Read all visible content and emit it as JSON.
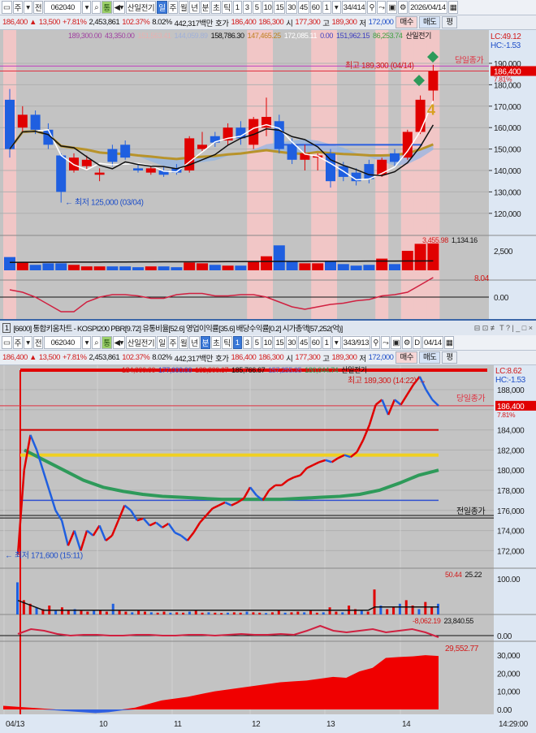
{
  "colors": {
    "up": "#e00000",
    "down": "#1f5fe0",
    "plot_bg": "#c3c3c3",
    "axis_bg": "#dde7f3",
    "highlight": "#f1c6c6"
  },
  "top": {
    "toolbar": [
      "주",
      "전",
      "062040",
      "통",
      "산일전기",
      "일",
      "주",
      "월",
      "년",
      "분",
      "초",
      "틱",
      "1",
      "3",
      "5",
      "10",
      "15",
      "30",
      "45",
      "60",
      "1",
      "34/414",
      "2026/04/14"
    ],
    "toolbar_selected": [
      5
    ],
    "quote": {
      "price": "186,400 ▲",
      "change": "13,500",
      "rate": "+7.81%",
      "volume": "2,453,861",
      "vol_ratio": "102.37%",
      "turnover": "8.02%",
      "amount": "442,317백만",
      "hoga_label": "호가",
      "ask": "186,400",
      "bid": "186,300",
      "open_label": "시",
      "open": "177,300",
      "high_label": "고",
      "high": "189,300",
      "low_label": "저",
      "low": "172,000",
      "buy": "매수",
      "sell": "매도",
      "avg": "평"
    },
    "legend": [
      "189,300.00",
      "43,350.00",
      "151,563.41",
      "144,059.89",
      "158,786.30",
      "147,465.25",
      "172,085.11",
      "0.00",
      "151,962.15",
      "86,253.74",
      "산일전기"
    ],
    "lc": "LC:49.12",
    "hc": "HC:-1.53",
    "high_note": "최고 189,300 (04/14)",
    "low_note": "최저 125,000 (03/04)",
    "prev_close_label": "당일종가",
    "last_price": "186,400",
    "last_rate": "7.81%",
    "signal_number": "4",
    "price_ticks": [
      "190,000",
      "180,000",
      "170,000",
      "160,000",
      "150,000",
      "140,000",
      "130,000",
      "120,000"
    ],
    "volume_labels": [
      "3,455.98",
      "1,134.16"
    ],
    "volume_tick": "2,500",
    "osc_label": "8.04",
    "osc_tick": "0.00"
  },
  "title_bar": {
    "num": "1",
    "text": "[6600] 통합키움차트 - KOSPI200 PBR[9.72] 유통비율[52.6] 영업이익률[35.6] 배당수익률[0.2] 시가총액[57,252(억)]",
    "controls": "⊟ ⊡ ≢ T ? | _ □ ×"
  },
  "bottom": {
    "toolbar": [
      "주",
      "전",
      "062040",
      "통",
      "산일전기",
      "일",
      "주",
      "월",
      "년",
      "분",
      "초",
      "틱",
      "1",
      "3",
      "5",
      "10",
      "15",
      "30",
      "45",
      "60",
      "1",
      "343/913",
      "D",
      "04/14"
    ],
    "toolbar_selected": [
      9,
      12
    ],
    "legend": [
      "184,000.00",
      "177,000.00",
      "183,300.67",
      "185,766.67",
      "157,255.35",
      "180,044.74",
      "산일전기"
    ],
    "lc": "LC:8.62",
    "hc": "HC:-1.53",
    "high_note": "최고 189,300 (14:22)",
    "low_note": "최저 171,600 (15:11)",
    "prev_close_label": "당일종가",
    "prev_day_label": "전일종가",
    "last_price": "186,400",
    "last_rate": "7.81%",
    "price_ticks": [
      "188,000",
      "186,000",
      "184,000",
      "182,000",
      "180,000",
      "178,000",
      "176,000",
      "174,000",
      "172,000"
    ],
    "volume_labels": [
      "50.44",
      "25.22"
    ],
    "volume_tick": "100.00",
    "osc_labels": [
      "-8,062.19",
      "23,840.55"
    ],
    "osc_tick": "0.00",
    "area_label": "29,552.77",
    "area_ticks": [
      "30,000",
      "20,000",
      "10,000",
      "0.00"
    ],
    "x_labels": [
      "04/13",
      "10",
      "11",
      "12",
      "13",
      "14"
    ],
    "time": "14:29:00"
  },
  "chart_data": [
    {
      "type": "candlestick",
      "period": "daily",
      "ohlc": [
        [
          173,
          178,
          146,
          150
        ],
        [
          160,
          170,
          158,
          166
        ],
        [
          166,
          168,
          157,
          159
        ],
        [
          159,
          162,
          150,
          152
        ],
        [
          147,
          148,
          125,
          130
        ],
        [
          140,
          148,
          139,
          146
        ],
        [
          142,
          147,
          140,
          145
        ],
        [
          138,
          141,
          135,
          139
        ],
        [
          150,
          152,
          142,
          144
        ],
        [
          152,
          154,
          145,
          146
        ],
        [
          141,
          143,
          139,
          140
        ],
        [
          139,
          142,
          138,
          141
        ],
        [
          140,
          142,
          137,
          138
        ],
        [
          141,
          143,
          138,
          139
        ],
        [
          140,
          156,
          139,
          155
        ],
        [
          150,
          158,
          149,
          152
        ],
        [
          156,
          158,
          151,
          153
        ],
        [
          154,
          162,
          152,
          160
        ],
        [
          160,
          163,
          152,
          155
        ],
        [
          152,
          165,
          150,
          164
        ],
        [
          160,
          174,
          156,
          165
        ],
        [
          163,
          166,
          148,
          150
        ],
        [
          152,
          155,
          143,
          145
        ],
        [
          145,
          152,
          140,
          148
        ],
        [
          146,
          148,
          140,
          147
        ],
        [
          148,
          150,
          132,
          135
        ],
        [
          142,
          144,
          135,
          137
        ],
        [
          139,
          141,
          133,
          135
        ],
        [
          143,
          145,
          134,
          136
        ],
        [
          138,
          146,
          137,
          145
        ],
        [
          148,
          150,
          142,
          144
        ],
        [
          146,
          159,
          145,
          158
        ],
        [
          158,
          175,
          157,
          173
        ],
        [
          177.3,
          189.3,
          172,
          186.4
        ]
      ],
      "highlight_bars": [
        0,
        19,
        20,
        24,
        25,
        29,
        31,
        32,
        33
      ],
      "volume": [
        1700,
        1000,
        700,
        900,
        900,
        700,
        500,
        500,
        500,
        500,
        400,
        500,
        500,
        400,
        1000,
        900,
        700,
        600,
        600,
        1200,
        1800,
        3200,
        1100,
        900,
        900,
        1200,
        800,
        600,
        700,
        1500,
        800,
        2500,
        3400,
        3456
      ],
      "volume_ma": 1134.16,
      "oscillator": [
        3,
        2,
        0,
        -3,
        -6,
        -6,
        -2,
        0,
        1,
        1,
        0.5,
        -0.5,
        -0.5,
        1,
        1.5,
        1.5,
        0.5,
        0.5,
        1,
        1,
        0,
        -2,
        -4,
        -5,
        -4,
        -3,
        -2.5,
        -1.5,
        -1,
        0.5,
        1,
        2,
        5,
        8.04
      ],
      "ylim": [
        115,
        195
      ]
    },
    {
      "type": "line",
      "period": "1-minute",
      "price": [
        171.6,
        180,
        183.5,
        182,
        180,
        178,
        176,
        175,
        172.5,
        174,
        172,
        174,
        173.5,
        174.5,
        173,
        173.5,
        175,
        176.5,
        176,
        175,
        175.2,
        174.5,
        174.8,
        174.3,
        174.7,
        173.8,
        173.5,
        173,
        173.8,
        174.8,
        175.5,
        176.2,
        176.5,
        176.8,
        176.5,
        176.8,
        177.2,
        178.3,
        177.5,
        177,
        178,
        178.5,
        178.5,
        179,
        179.3,
        179.5,
        180.2,
        180.5,
        180.8,
        181,
        180.8,
        181.2,
        181.5,
        181.3,
        181.8,
        183,
        184.5,
        186.5,
        187,
        185.5,
        187,
        186.5,
        187.5,
        188.5,
        189.3,
        188,
        187,
        186.4
      ],
      "vwap": [
        182,
        181,
        180,
        179,
        178.3,
        177.9,
        177.6,
        177.4,
        177.3,
        177.2,
        177.1,
        177.1,
        177.1,
        177.1,
        177.2,
        177.3,
        177.4,
        177.6,
        178,
        178.7,
        179.5,
        180
      ],
      "levels": {
        "red": 184,
        "yellow": 181.5,
        "blue": 177,
        "prev_close": 175.5
      },
      "volume": [
        90,
        40,
        30,
        20,
        15,
        25,
        10,
        20,
        10,
        15,
        10,
        8,
        10,
        12,
        8,
        30,
        10,
        8,
        6,
        10,
        8,
        6,
        5,
        8,
        5,
        6,
        5,
        8,
        10,
        5,
        6,
        5,
        4,
        5,
        6,
        5,
        8,
        6,
        5,
        4,
        6,
        10,
        5,
        6,
        8,
        6,
        10,
        5,
        6,
        20,
        8,
        6,
        25,
        15,
        10,
        8,
        70,
        25,
        15,
        20,
        30,
        40,
        25,
        15,
        35,
        20,
        30
      ],
      "oscillator": [
        1,
        4,
        3,
        1,
        0,
        0.5,
        0.5,
        0,
        0,
        0.5,
        0.5,
        0,
        0,
        0.5,
        0.5,
        0,
        0.5,
        1,
        0.5,
        0.5,
        1,
        0.5,
        3,
        6,
        3,
        2,
        3,
        4,
        2,
        3,
        4,
        2,
        -1
      ],
      "cumulative": [
        2000,
        1500,
        1000,
        500,
        -500,
        -1000,
        -1500,
        -2000,
        -1500,
        -500,
        1000,
        3000,
        5000,
        6000,
        7000,
        8500,
        10000,
        11000,
        12000,
        13000,
        14000,
        15000,
        15500,
        16000,
        17000,
        18000,
        17500,
        21000,
        23000,
        28500,
        29000,
        29300,
        30000,
        29552.77
      ]
    }
  ]
}
